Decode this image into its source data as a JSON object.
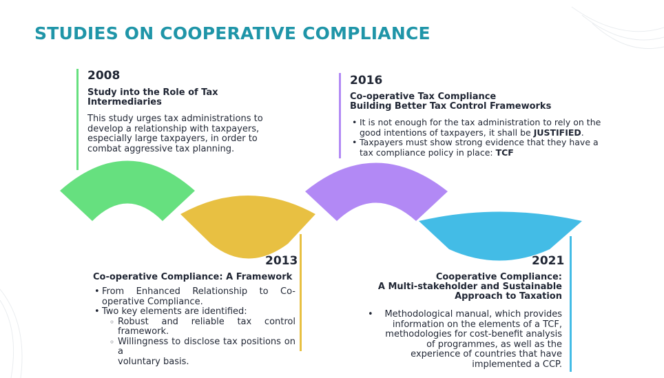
{
  "slide": {
    "title": "STUDIES ON COOPERATIVE COMPLIANCE"
  },
  "colors": {
    "title": "#1f95a8",
    "green": "#66e07f",
    "yellow": "#e8c042",
    "purple": "#b289f5",
    "blue": "#43bce6"
  },
  "milestones": {
    "m2008": {
      "year": "2008",
      "heading": [
        "Study into the Role of Tax",
        "Intermediaries"
      ],
      "body": [
        "This study urges tax administrations to",
        "develop a relationship with taxpayers,",
        "especially large taxpayers, in order to",
        "combat aggressive tax planning."
      ]
    },
    "m2013": {
      "year": "2013",
      "heading": [
        "Co-operative Compliance: A Framework"
      ],
      "bullets": [
        {
          "lines": [
            "From Enhanced Relationship to Co-",
            "operative Compliance."
          ]
        },
        {
          "lines": [
            "Two key elements are identified:"
          ]
        }
      ],
      "sub_bullets": [
        {
          "lines": [
            "Robust and reliable tax control",
            "framework."
          ]
        },
        {
          "lines": [
            "Willingness to disclose tax positions on a",
            "voluntary basis."
          ]
        }
      ]
    },
    "m2016": {
      "year": "2016",
      "heading": [
        "Co-operative Tax Compliance",
        "Building Better Tax Control Frameworks"
      ],
      "bullet1_line1": "It is not enough for the tax administration to rely on the",
      "bullet1_line2_prefix": "good intentions of taxpayers, it shall be ",
      "bullet1_line2_bold": "JUSTIFIED",
      "bullet1_line2_suffix": ".",
      "bullet2_line1": "Taxpayers must show strong evidence that they have a",
      "bullet2_line2_prefix": "tax compliance policy in place: ",
      "bullet2_line2_bold": "TCF"
    },
    "m2021": {
      "year": "2021",
      "heading": [
        "Cooperative Compliance:",
        "A Multi-stakeholder and Sustainable",
        "Approach to Taxation"
      ],
      "body": [
        "Methodological manual, which provides",
        "information on the elements of a TCF,",
        "methodologies for cost-benefit analysis",
        "of programmes, as well as the",
        "experience of countries that have",
        "implemented a CCP."
      ]
    }
  }
}
